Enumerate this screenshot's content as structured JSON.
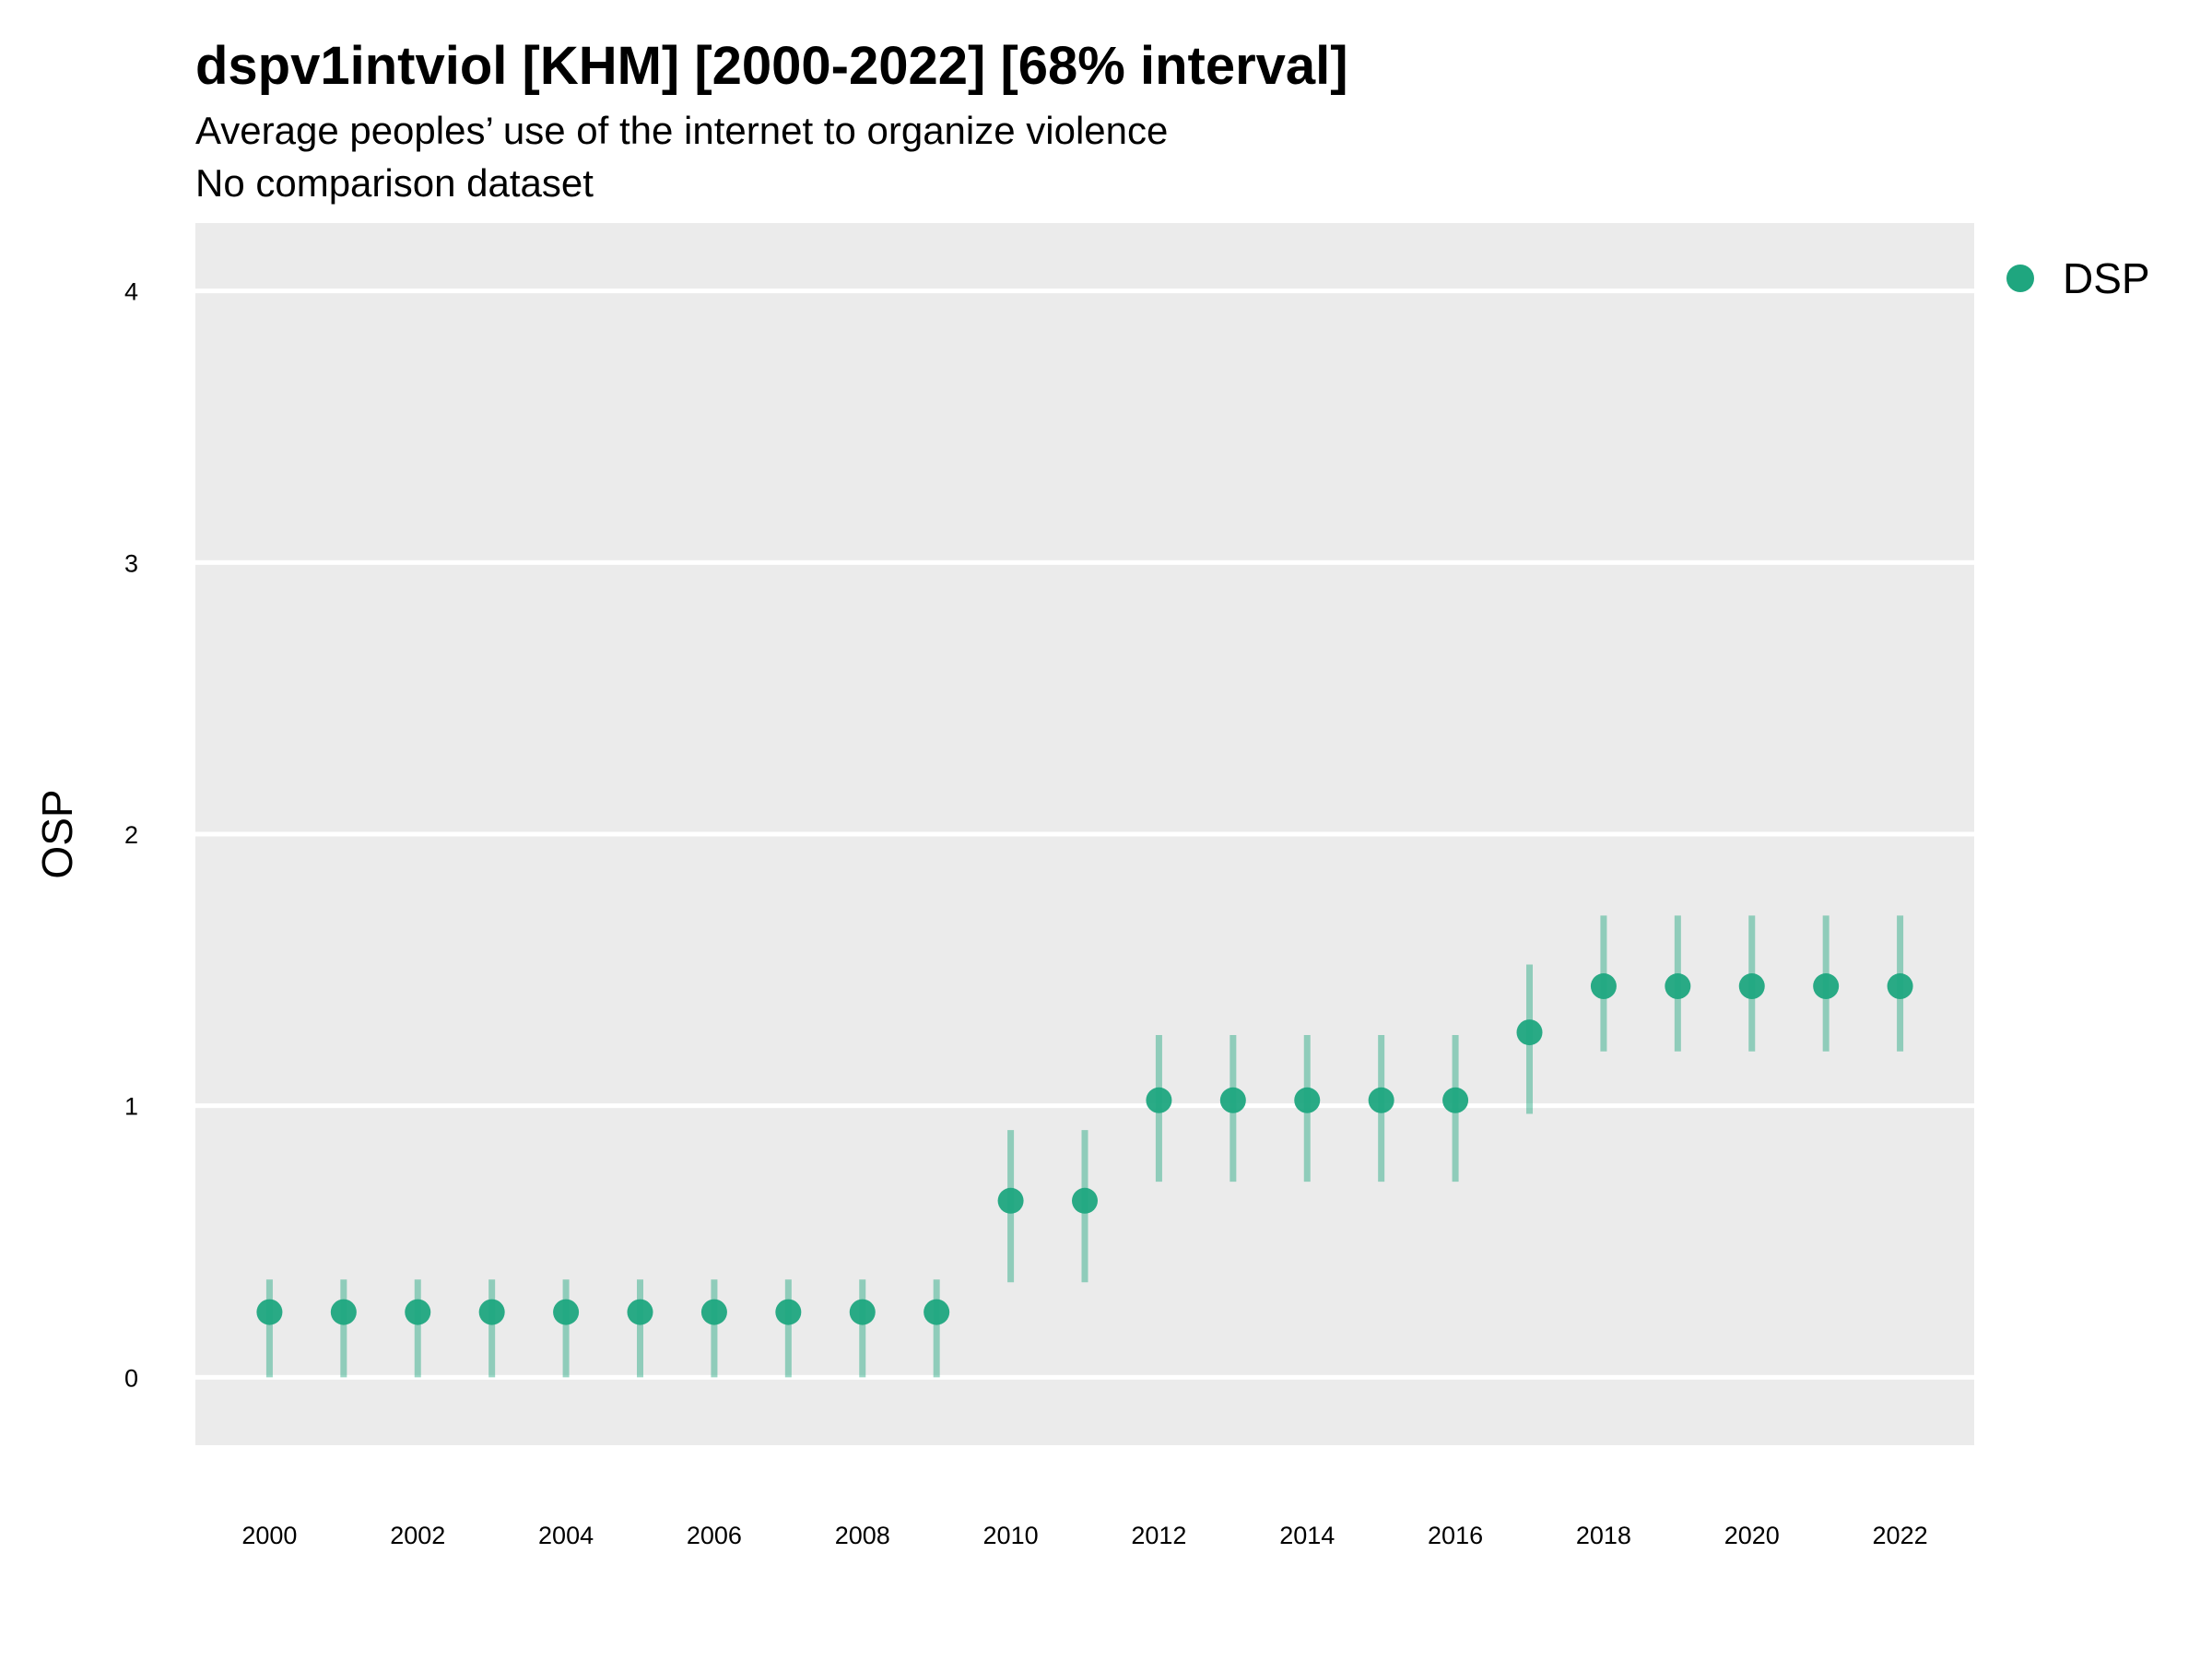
{
  "header": {
    "title": "dspv1intviol [KHM] [2000-2022] [68% interval]",
    "subtitle": "Average peoples’ use of the internet to organize violence",
    "subtitle2": "No comparison dataset"
  },
  "chart_data": {
    "type": "scatter",
    "title": "dspv1intviol [KHM] [2000-2022] [68% interval]",
    "xlabel": "",
    "ylabel": "OSP",
    "xlim": [
      1999,
      2023
    ],
    "ylim": [
      -0.25,
      4.25
    ],
    "x_ticks": [
      2000,
      2002,
      2004,
      2006,
      2008,
      2010,
      2012,
      2014,
      2016,
      2018,
      2020,
      2022
    ],
    "y_ticks": [
      0,
      1,
      2,
      3,
      4
    ],
    "grid": true,
    "legend_position": "top-right",
    "series": [
      {
        "name": "DSP",
        "color": "#1fa67f",
        "x": [
          2000,
          2001,
          2002,
          2003,
          2004,
          2005,
          2006,
          2007,
          2008,
          2009,
          2010,
          2011,
          2012,
          2013,
          2014,
          2015,
          2016,
          2017,
          2018,
          2019,
          2020,
          2021,
          2022
        ],
        "y": [
          0.24,
          0.24,
          0.24,
          0.24,
          0.24,
          0.24,
          0.24,
          0.24,
          0.24,
          0.24,
          0.65,
          0.65,
          1.02,
          1.02,
          1.02,
          1.02,
          1.02,
          1.27,
          1.44,
          1.44,
          1.44,
          1.44,
          1.44
        ],
        "lower": [
          0.0,
          0.0,
          0.0,
          0.0,
          0.0,
          0.0,
          0.0,
          0.0,
          0.0,
          0.0,
          0.35,
          0.35,
          0.72,
          0.72,
          0.72,
          0.72,
          0.72,
          0.97,
          1.2,
          1.2,
          1.2,
          1.2,
          1.2
        ],
        "upper": [
          0.36,
          0.36,
          0.36,
          0.36,
          0.36,
          0.36,
          0.36,
          0.36,
          0.36,
          0.36,
          0.91,
          0.91,
          1.26,
          1.26,
          1.26,
          1.26,
          1.26,
          1.52,
          1.7,
          1.7,
          1.7,
          1.7,
          1.7
        ]
      }
    ]
  }
}
